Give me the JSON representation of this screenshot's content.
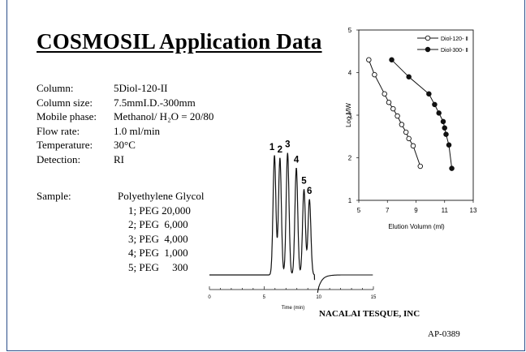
{
  "title": "COSMOSIL Application Data",
  "conditions": [
    {
      "label": "Column:",
      "value": "5Diol-120-II"
    },
    {
      "label": "Column size:",
      "value": "7.5mmI.D.-300mm"
    },
    {
      "label": "Mobile phase:",
      "value": "Methanol/ H₂O = 20/80"
    },
    {
      "label": "Flow rate:",
      "value": "1.0 ml/min"
    },
    {
      "label": "Temperature:",
      "value": "30°C"
    },
    {
      "label": "Detection:",
      "value": "RI"
    }
  ],
  "sample": {
    "label": "Sample:",
    "lines": [
      "Polyethylene Glycol",
      "    1; PEG 20,000",
      "    2; PEG  6,000",
      "    3; PEG  4,000",
      "    4; PEG  1,000",
      "    5; PEG     300"
    ]
  },
  "company": "NACALAI TESQUE, INC",
  "doc_code": "AP-0389",
  "chart_data": [
    {
      "type": "line",
      "xlabel": "Time (min)",
      "ylabel": "",
      "xlim": [
        0,
        15
      ],
      "x_ticks": [
        "0",
        "5",
        "10",
        "15"
      ],
      "peak_labels": [
        "1",
        "2",
        "3",
        "4",
        "5",
        "6"
      ],
      "peaks": [
        {
          "label": "1",
          "time": 5.95,
          "height": 0.95
        },
        {
          "label": "2",
          "time": 6.45,
          "height": 0.93
        },
        {
          "label": "3",
          "time": 7.15,
          "height": 0.97
        },
        {
          "label": "4",
          "time": 7.95,
          "height": 0.85
        },
        {
          "label": "5",
          "time": 8.65,
          "height": 0.68
        },
        {
          "label": "6",
          "time": 9.15,
          "height": 0.6
        }
      ]
    },
    {
      "type": "scatter",
      "xlabel": "Elution Volumn (ml)",
      "ylabel": "Log MW",
      "xlim": [
        5,
        13
      ],
      "ylim": [
        1,
        5
      ],
      "x_ticks": [
        "5",
        "7",
        "9",
        "11",
        "13"
      ],
      "y_ticks": [
        "1",
        "2",
        "3",
        "4",
        "5"
      ],
      "legend_position": "top-right",
      "series": [
        {
          "name": "Diol-120- Ⅱ",
          "marker": "open-circle",
          "x": [
            5.7,
            6.1,
            6.8,
            7.1,
            7.4,
            7.7,
            8.0,
            8.3,
            8.5,
            8.8,
            9.3
          ],
          "y": [
            4.3,
            3.95,
            3.5,
            3.3,
            3.15,
            2.98,
            2.78,
            2.6,
            2.45,
            2.28,
            1.8
          ]
        },
        {
          "name": "Diol-300- Ⅱ",
          "marker": "filled-circle",
          "x": [
            7.3,
            8.5,
            9.9,
            10.3,
            10.6,
            10.9,
            11.0,
            11.1,
            11.3,
            11.5
          ],
          "y": [
            4.3,
            3.9,
            3.5,
            3.25,
            3.05,
            2.85,
            2.7,
            2.55,
            2.3,
            1.75
          ]
        }
      ]
    }
  ]
}
